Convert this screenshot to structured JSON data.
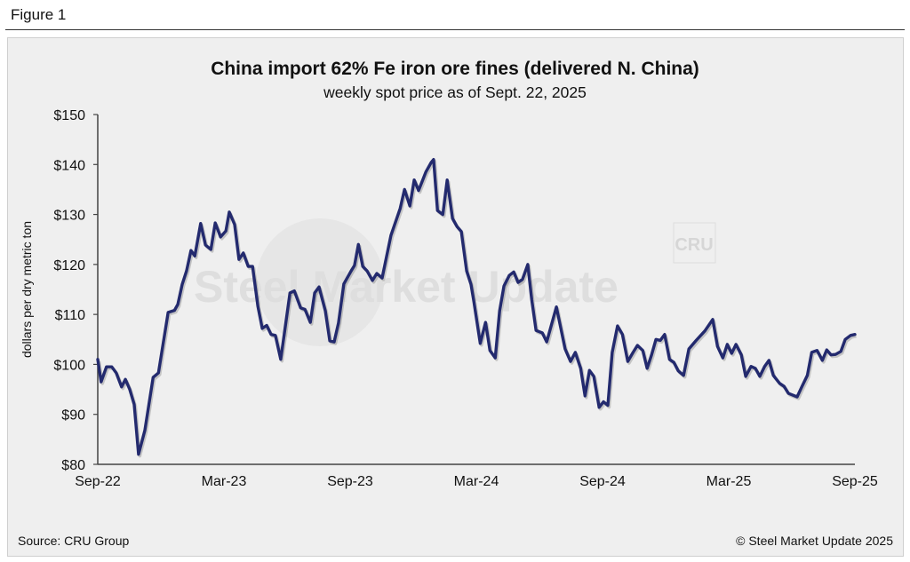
{
  "figure_label": "Figure 1",
  "chart_data": {
    "type": "line",
    "title": "China import 62% Fe iron ore fines (delivered N. China)",
    "subtitle": "weekly spot price as of Sept. 22, 2025",
    "xlabel": "",
    "ylabel": "dollars per dry metric ton",
    "ylim": [
      80,
      150
    ],
    "yticks": [
      80,
      90,
      100,
      110,
      120,
      130,
      140,
      150
    ],
    "ytick_labels": [
      "$80",
      "$90",
      "$100",
      "$110",
      "$120",
      "$130",
      "$140",
      "$150"
    ],
    "x_unit": "weeks since Sep-22",
    "xlim": [
      0,
      156
    ],
    "xticks": [
      0,
      26,
      52,
      78,
      104,
      130,
      156
    ],
    "xtick_labels": [
      "Sep-22",
      "Mar-23",
      "Sep-23",
      "Mar-24",
      "Sep-24",
      "Mar-25",
      "Sep-25"
    ],
    "grid": false,
    "series": [
      {
        "name": "62% Fe iron ore fines",
        "color": "#232a6e",
        "points": [
          [
            0,
            101
          ],
          [
            0.7,
            96.5
          ],
          [
            1.8,
            99.5
          ],
          [
            2.9,
            99.5
          ],
          [
            3.8,
            98.3
          ],
          [
            4.9,
            95.5
          ],
          [
            5.7,
            97
          ],
          [
            6.6,
            95
          ],
          [
            7.5,
            92
          ],
          [
            8.4,
            82
          ],
          [
            9.7,
            86.8
          ],
          [
            11.4,
            97.4
          ],
          [
            12.5,
            98.3
          ],
          [
            14.5,
            110.4
          ],
          [
            15.8,
            110.8
          ],
          [
            16.5,
            112
          ],
          [
            17.4,
            116
          ],
          [
            18.3,
            118.7
          ],
          [
            19.2,
            122.8
          ],
          [
            20,
            121.7
          ],
          [
            21.2,
            128.2
          ],
          [
            22.2,
            123.9
          ],
          [
            23.3,
            123
          ],
          [
            24.2,
            128.3
          ],
          [
            25.3,
            125.5
          ],
          [
            26.4,
            126.7
          ],
          [
            27.1,
            130.5
          ],
          [
            28.2,
            128
          ],
          [
            29.1,
            121
          ],
          [
            30,
            122.3
          ],
          [
            31,
            119.6
          ],
          [
            31.9,
            119.6
          ],
          [
            33,
            111.6
          ],
          [
            33.9,
            107.2
          ],
          [
            34.8,
            107.8
          ],
          [
            35.7,
            106
          ],
          [
            36.6,
            105.8
          ],
          [
            37.7,
            101
          ],
          [
            39.6,
            114.3
          ],
          [
            40.5,
            114.7
          ],
          [
            41.8,
            111.3
          ],
          [
            42.7,
            111
          ],
          [
            43.8,
            108.4
          ],
          [
            44.7,
            114.3
          ],
          [
            45.6,
            115.5
          ],
          [
            46.9,
            110.7
          ],
          [
            47.8,
            104.7
          ],
          [
            48.7,
            104.5
          ],
          [
            49.6,
            108.3
          ],
          [
            50.7,
            116.1
          ],
          [
            52.2,
            118.7
          ],
          [
            52.9,
            119.8
          ],
          [
            53.7,
            124
          ],
          [
            54.6,
            119.6
          ],
          [
            55.5,
            118.7
          ],
          [
            56.6,
            116.8
          ],
          [
            57.5,
            118.2
          ],
          [
            58.6,
            117.3
          ],
          [
            60.4,
            125.8
          ],
          [
            62.3,
            131.2
          ],
          [
            63.2,
            135
          ],
          [
            64.3,
            131.7
          ],
          [
            65.2,
            136.9
          ],
          [
            66.1,
            134.8
          ],
          [
            67.6,
            138.5
          ],
          [
            68.7,
            140.4
          ],
          [
            69.2,
            141
          ],
          [
            70,
            130.8
          ],
          [
            71.1,
            130
          ],
          [
            72,
            136.9
          ],
          [
            73.1,
            129.2
          ],
          [
            74,
            127.6
          ],
          [
            74.9,
            126.6
          ],
          [
            76,
            118.7
          ],
          [
            76.9,
            116
          ],
          [
            77.5,
            112.5
          ],
          [
            78.8,
            104.2
          ],
          [
            79.9,
            108.4
          ],
          [
            80.8,
            102.8
          ],
          [
            81.9,
            101.3
          ],
          [
            82.8,
            110.7
          ],
          [
            83.7,
            115.7
          ],
          [
            84.8,
            117.8
          ],
          [
            85.7,
            118.5
          ],
          [
            86.6,
            116.4
          ],
          [
            87.5,
            117
          ],
          [
            88.6,
            120
          ],
          [
            89.4,
            113
          ],
          [
            90.3,
            106.8
          ],
          [
            91.6,
            106.3
          ],
          [
            92.5,
            104.5
          ],
          [
            94.5,
            111.5
          ],
          [
            96.3,
            103.1
          ],
          [
            97.4,
            100.6
          ],
          [
            98.4,
            102.4
          ],
          [
            99.5,
            99.2
          ],
          [
            100.4,
            93.7
          ],
          [
            101.3,
            98.8
          ],
          [
            102.2,
            97.6
          ],
          [
            103.3,
            91.4
          ],
          [
            104.2,
            92.5
          ],
          [
            105.1,
            91.8
          ],
          [
            106,
            102.4
          ],
          [
            107.1,
            107.7
          ],
          [
            108.1,
            106
          ],
          [
            109.2,
            100.6
          ],
          [
            110.3,
            102.4
          ],
          [
            111.2,
            103.8
          ],
          [
            112.3,
            102.8
          ],
          [
            113.2,
            99.2
          ],
          [
            114.1,
            101.9
          ],
          [
            115,
            105
          ],
          [
            115.9,
            104.8
          ],
          [
            116.8,
            106
          ],
          [
            117.8,
            101
          ],
          [
            118.7,
            100.4
          ],
          [
            119.6,
            98.7
          ],
          [
            120.7,
            97.8
          ],
          [
            121.8,
            103.1
          ],
          [
            123.3,
            104.8
          ],
          [
            125.1,
            106.7
          ],
          [
            126.7,
            109
          ],
          [
            127.7,
            103.6
          ],
          [
            128.8,
            101.3
          ],
          [
            129.7,
            104
          ],
          [
            130.6,
            102.2
          ],
          [
            131.5,
            104
          ],
          [
            132.6,
            101.9
          ],
          [
            133.5,
            97.6
          ],
          [
            134.6,
            99.6
          ],
          [
            135.5,
            99.2
          ],
          [
            136.4,
            97.6
          ],
          [
            137.4,
            99.6
          ],
          [
            138.3,
            100.8
          ],
          [
            139.2,
            97.8
          ],
          [
            140.5,
            96.2
          ],
          [
            141.4,
            95.6
          ],
          [
            142.3,
            94.2
          ],
          [
            144.1,
            93.5
          ],
          [
            145.1,
            95.6
          ],
          [
            146.2,
            97.8
          ],
          [
            147.1,
            102.4
          ],
          [
            148.2,
            102.8
          ],
          [
            149.3,
            100.8
          ],
          [
            150.2,
            102.9
          ],
          [
            151.1,
            101.9
          ],
          [
            152,
            102
          ],
          [
            153.1,
            102.6
          ],
          [
            154,
            105
          ],
          [
            155.1,
            105.8
          ],
          [
            156,
            106
          ]
        ]
      }
    ]
  },
  "source": "Source: CRU Group",
  "copyright": "© Steel Market Update 2025",
  "watermark": "Steel Market Update",
  "watermark_logo": "CRU"
}
